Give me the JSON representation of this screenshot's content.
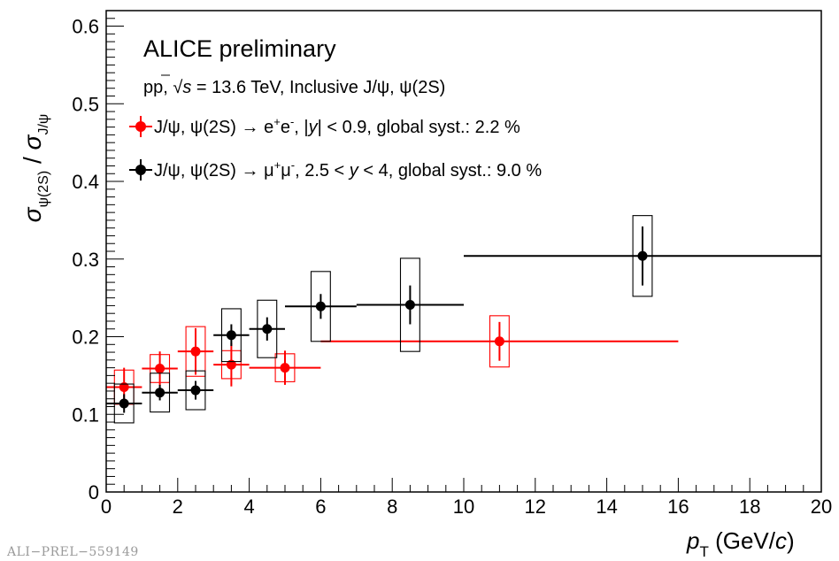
{
  "chart_data": {
    "type": "scatter",
    "title": "ALICE preliminary",
    "subtitle": "pp, √s = 13.6 TeV, Inclusive J/ψ, ψ(2S)",
    "xlabel": "p_T (GeV/c)",
    "ylabel": "σ_ψ(2S) / σ_J/ψ",
    "xlim": [
      0,
      20
    ],
    "ylim": [
      0,
      0.62
    ],
    "xticks": [
      "0",
      "2",
      "4",
      "6",
      "8",
      "10",
      "12",
      "14",
      "16",
      "18",
      "20"
    ],
    "yticks": [
      "0",
      "0.1",
      "0.2",
      "0.3",
      "0.4",
      "0.5",
      "0.6"
    ],
    "legend_position": "top-left",
    "series": [
      {
        "name": "J/ψ, ψ(2S) → e⁺e⁻, |y| < 0.9, global syst.: 2.2 %",
        "color": "#ff0000",
        "points": [
          {
            "x": 0.5,
            "y": 0.135,
            "xlo": 0,
            "xhi": 1,
            "stat": 0.025,
            "syst": 0.022
          },
          {
            "x": 1.5,
            "y": 0.159,
            "xlo": 1,
            "xhi": 2,
            "stat": 0.022,
            "syst": 0.018
          },
          {
            "x": 2.5,
            "y": 0.181,
            "xlo": 2,
            "xhi": 3,
            "stat": 0.03,
            "syst": 0.032
          },
          {
            "x": 3.5,
            "y": 0.164,
            "xlo": 3,
            "xhi": 4,
            "stat": 0.028,
            "syst": 0.018
          },
          {
            "x": 5.0,
            "y": 0.16,
            "xlo": 4,
            "xhi": 6,
            "stat": 0.022,
            "syst": 0.018
          },
          {
            "x": 11.0,
            "y": 0.194,
            "xlo": 6,
            "xhi": 16,
            "stat": 0.025,
            "syst": 0.033
          }
        ]
      },
      {
        "name": "J/ψ, ψ(2S) → μ⁺μ⁻, 2.5 < y < 4, global syst.: 9.0 %",
        "color": "#000000",
        "points": [
          {
            "x": 0.5,
            "y": 0.114,
            "xlo": 0,
            "xhi": 1,
            "stat": 0.012,
            "syst": 0.025
          },
          {
            "x": 1.5,
            "y": 0.128,
            "xlo": 1,
            "xhi": 2,
            "stat": 0.01,
            "syst": 0.025
          },
          {
            "x": 2.5,
            "y": 0.131,
            "xlo": 2,
            "xhi": 3,
            "stat": 0.012,
            "syst": 0.025
          },
          {
            "x": 3.5,
            "y": 0.202,
            "xlo": 3,
            "xhi": 4,
            "stat": 0.014,
            "syst": 0.034
          },
          {
            "x": 4.5,
            "y": 0.21,
            "xlo": 4,
            "xhi": 5,
            "stat": 0.015,
            "syst": 0.037
          },
          {
            "x": 6.0,
            "y": 0.239,
            "xlo": 5,
            "xhi": 7,
            "stat": 0.016,
            "syst": 0.045
          },
          {
            "x": 8.5,
            "y": 0.241,
            "xlo": 7,
            "xhi": 10,
            "stat": 0.025,
            "syst": 0.06
          },
          {
            "x": 15.0,
            "y": 0.304,
            "xlo": 10,
            "xhi": 20,
            "stat": 0.038,
            "syst": 0.052
          }
        ]
      }
    ]
  },
  "watermark": "ALI−PREL−559149"
}
